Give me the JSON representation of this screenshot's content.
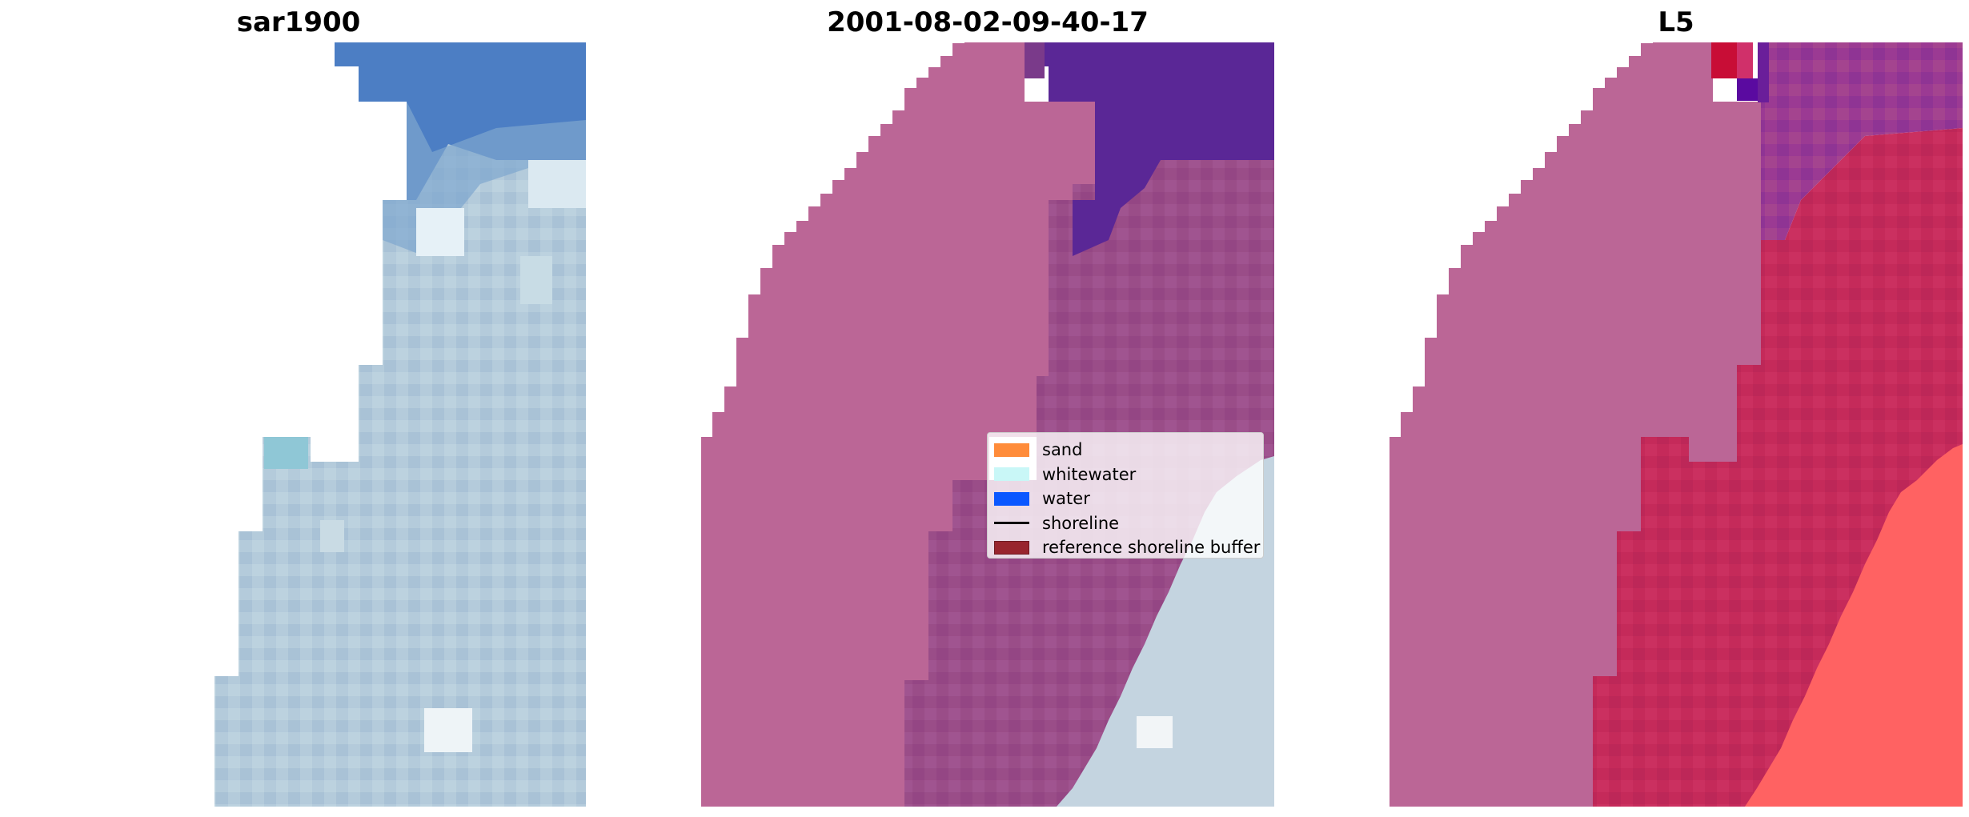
{
  "panels": [
    {
      "title": "sar1900"
    },
    {
      "title": "2001-08-02-09-40-17"
    },
    {
      "title": "L5"
    }
  ],
  "legend": {
    "items": [
      {
        "label": "sand",
        "color": "#ff8c3a",
        "type": "patch"
      },
      {
        "label": "whitewater",
        "color": "#c9f7f7",
        "type": "patch"
      },
      {
        "label": "water",
        "color": "#0a57ff",
        "type": "patch"
      },
      {
        "label": "shoreline",
        "color": "#000000",
        "type": "line"
      },
      {
        "label": "reference shoreline buffer",
        "color": "#98252e",
        "type": "patch"
      }
    ]
  },
  "colors": {
    "rgb_water_blue": "#4c7ec4",
    "rgb_surf_light": "#c2d7e2",
    "rgb_surf_mid": "#a9c3d8",
    "overlay_sand": "#bb6696",
    "overlay_dark_purple": "#5a2796",
    "overlay_surf_mix": "#9a4d88",
    "l5_red": "#c52a5a",
    "l5_salmon": "#ff6262",
    "l5_crimson": "#c80d36"
  }
}
